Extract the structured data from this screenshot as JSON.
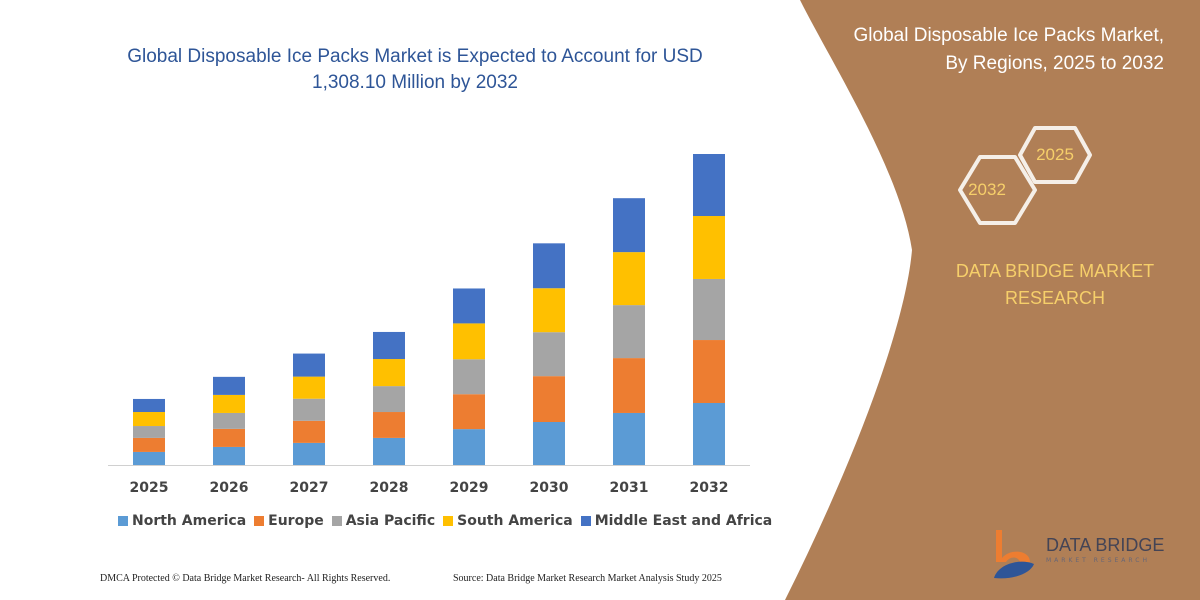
{
  "header": {
    "title": "Global Disposable Ice Packs Market is Expected to Account for USD 1,308.10 Million by 2032"
  },
  "side_panel": {
    "title_line1": "Global Disposable Ice Packs Market,",
    "title_line2": "By Regions, 2025 to 2032",
    "hex_2032": "2032",
    "hex_2025": "2025",
    "brand_line1": "DATA BRIDGE MARKET",
    "brand_line2": "RESEARCH",
    "logo_name": "DATA BRIDGE",
    "logo_sub": "MARKET RESEARCH",
    "color": "#b07f56"
  },
  "footer": {
    "copyright": "DMCA Protected © Data Bridge Market Research-  All Rights Reserved.",
    "source": "Source: Data Bridge Market Research  Market Analysis Study 2025"
  },
  "chart_data": {
    "type": "bar",
    "stacked": true,
    "title": "Global Disposable Ice Packs Market is Expected to Account for USD 1,308.10 Million by 2032",
    "xlabel": "",
    "ylabel": "",
    "ylim": [
      0,
      1310
    ],
    "grid": false,
    "legend": "bottom",
    "categories": [
      "2025",
      "2026",
      "2027",
      "2028",
      "2029",
      "2030",
      "2031",
      "2032"
    ],
    "series": [
      {
        "name": "North America",
        "color": "#5b9bd5",
        "values": [
          55,
          76,
          93,
          114,
          151,
          181,
          219,
          261
        ]
      },
      {
        "name": "Europe",
        "color": "#ed7d31",
        "values": [
          59,
          76,
          93,
          109,
          147,
          193,
          231,
          265
        ]
      },
      {
        "name": "Asia Pacific",
        "color": "#a5a5a5",
        "values": [
          50,
          67,
          93,
          109,
          147,
          185,
          223,
          257
        ]
      },
      {
        "name": "South America",
        "color": "#ffc000",
        "values": [
          59,
          76,
          93,
          114,
          151,
          185,
          223,
          265
        ]
      },
      {
        "name": "Middle East and Africa",
        "color": "#4472c4",
        "values": [
          55,
          76,
          97,
          114,
          147,
          189,
          227,
          261
        ]
      }
    ]
  }
}
